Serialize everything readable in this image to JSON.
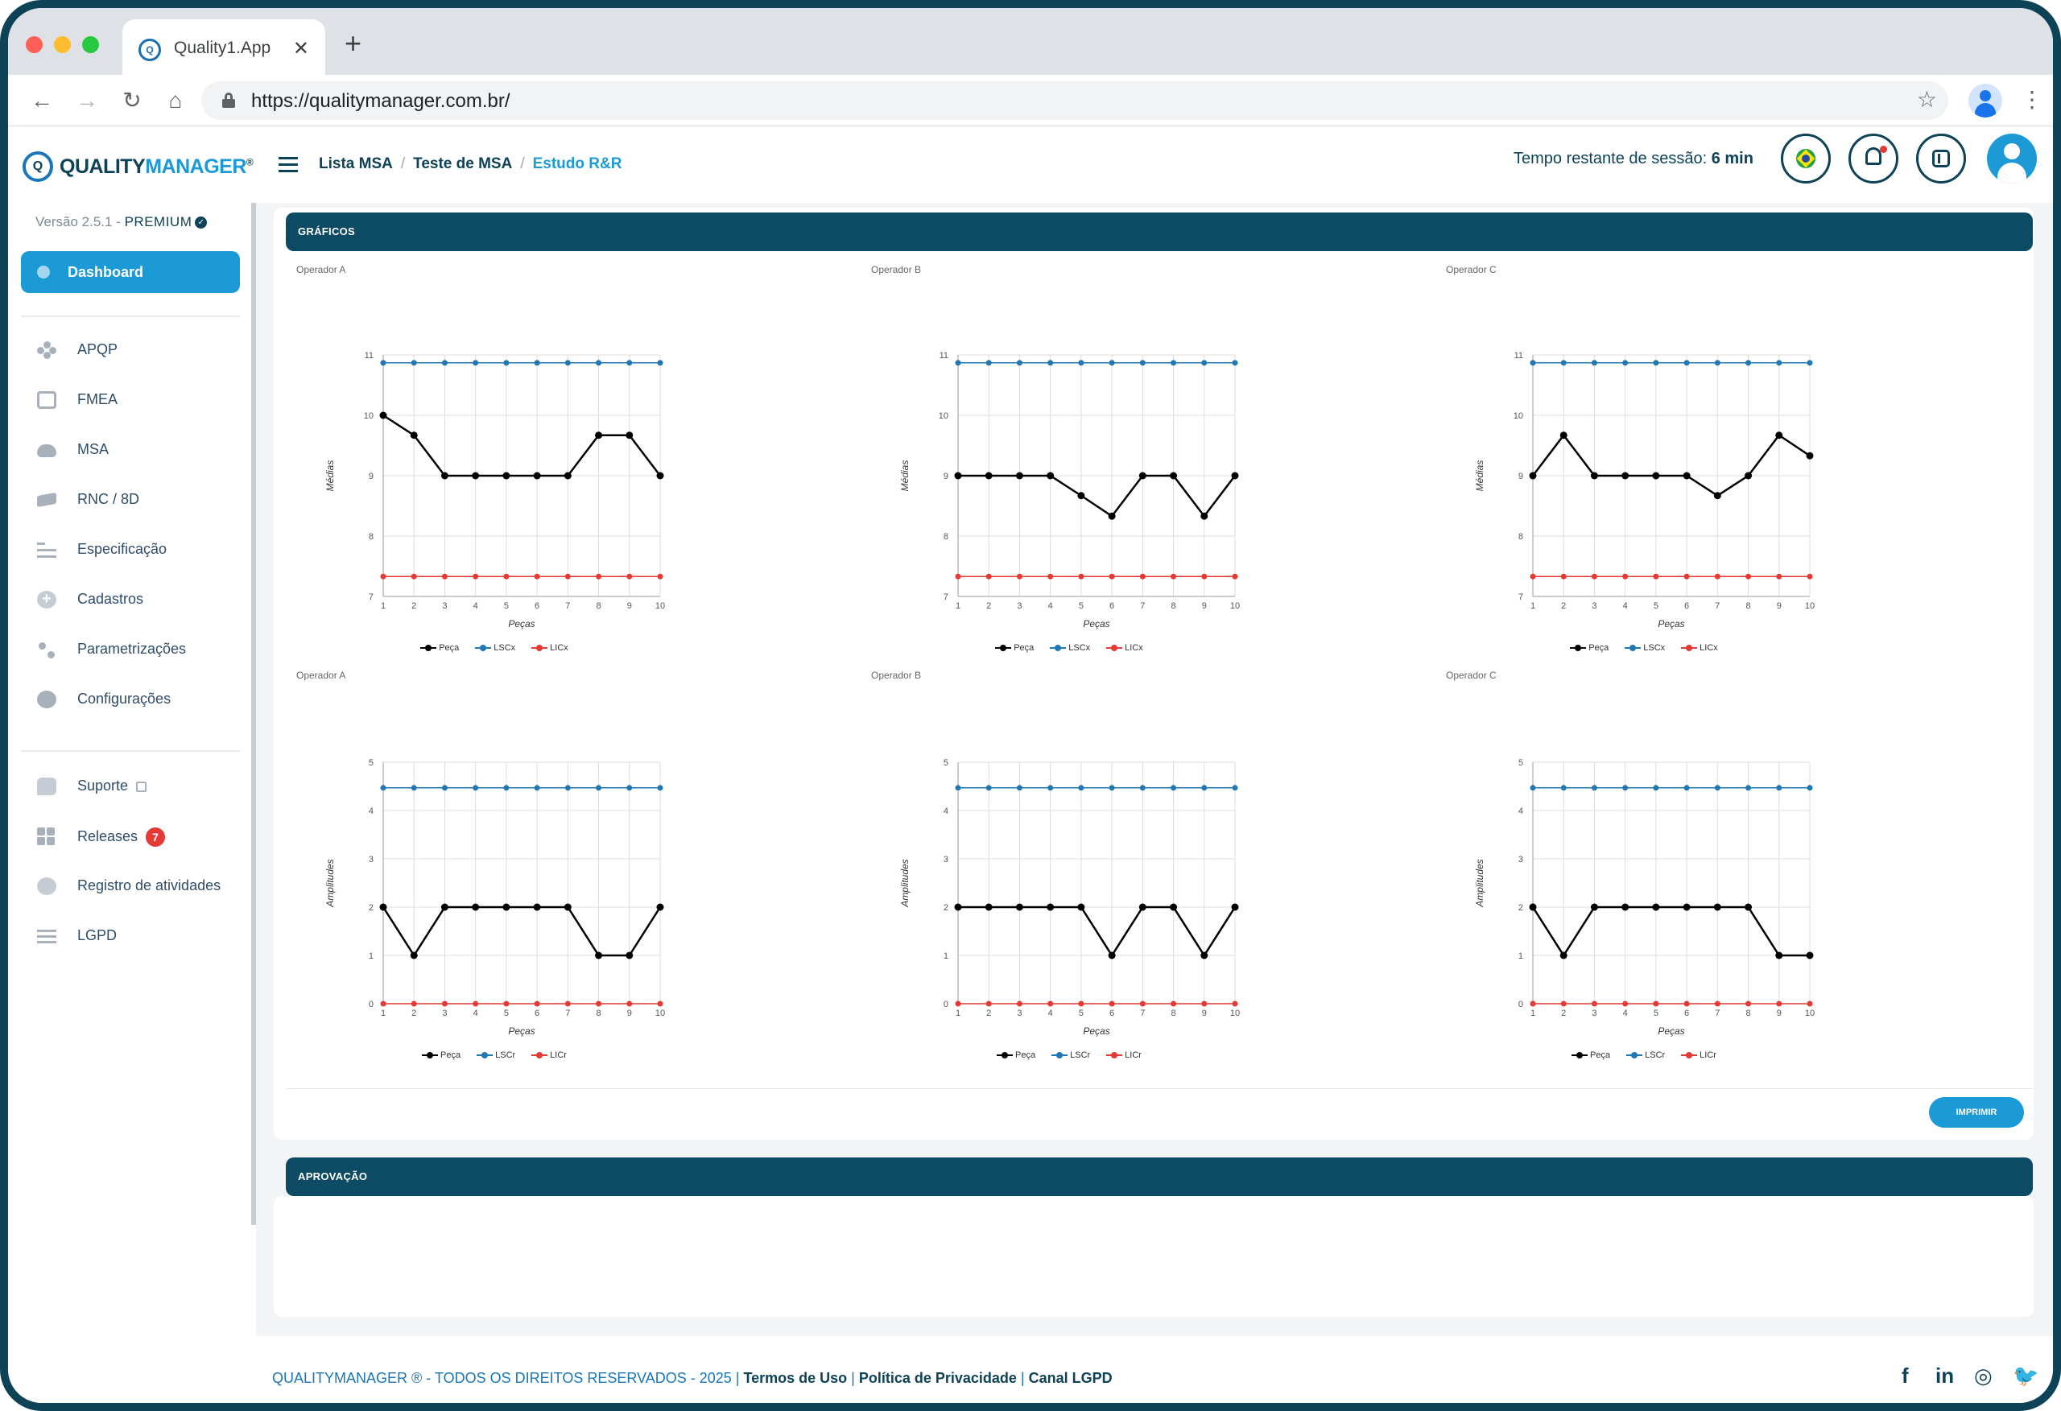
{
  "browser": {
    "tab_title": "Quality1.App",
    "url": "https://qualitymanager.com.br/"
  },
  "header": {
    "logo_quality": "QUALITY",
    "logo_manager": "MANAGER",
    "logo_reg": "®",
    "breadcrumb": [
      "Lista MSA",
      "Teste de MSA",
      "Estudo R&R"
    ],
    "session_label": "Tempo restante de sessão:",
    "session_value": "6 min"
  },
  "sidebar": {
    "version": "Versão 2.5.1 -",
    "plan": "PREMIUM",
    "dashboard": "Dashboard",
    "items": [
      {
        "label": "APQP",
        "icon": "apqp-icon"
      },
      {
        "label": "FMEA",
        "icon": "fmea-icon"
      },
      {
        "label": "MSA",
        "icon": "msa-icon"
      },
      {
        "label": "RNC / 8D",
        "icon": "rnc-icon"
      },
      {
        "label": "Especificação",
        "icon": "specification-icon"
      },
      {
        "label": "Cadastros",
        "icon": "add-icon"
      },
      {
        "label": "Parametrizações",
        "icon": "parameters-icon"
      },
      {
        "label": "Configurações",
        "icon": "gear-icon"
      }
    ],
    "support_items": [
      {
        "label": "Suporte",
        "icon": "chat-icon"
      },
      {
        "label": "Releases",
        "icon": "grid-icon",
        "badge": "7"
      },
      {
        "label": "Registro de atividades",
        "icon": "info-icon"
      },
      {
        "label": "LGPD",
        "icon": "list-icon"
      }
    ]
  },
  "sections": {
    "graphs": "GRÁFICOS",
    "approval": "APROVAÇÃO",
    "print_button": "IMPRIMIR"
  },
  "chart_data": [
    {
      "type": "line",
      "title": "Operador A",
      "xlabel": "Peças",
      "ylabel": "Médias",
      "x": [
        1,
        2,
        3,
        4,
        5,
        6,
        7,
        8,
        9,
        10
      ],
      "ylim": [
        7,
        11
      ],
      "yticks": [
        7,
        8,
        9,
        10,
        11
      ],
      "legend_position": "bottom",
      "series": [
        {
          "name": "Peça",
          "color": "#000000",
          "values": [
            10.0,
            9.67,
            9.0,
            9.0,
            9.0,
            9.0,
            9.0,
            9.67,
            9.67,
            9.0
          ]
        },
        {
          "name": "LSCx",
          "color": "#1f77b4",
          "values": [
            10.87,
            10.87,
            10.87,
            10.87,
            10.87,
            10.87,
            10.87,
            10.87,
            10.87,
            10.87
          ]
        },
        {
          "name": "LICx",
          "color": "#e53935",
          "values": [
            7.33,
            7.33,
            7.33,
            7.33,
            7.33,
            7.33,
            7.33,
            7.33,
            7.33,
            7.33
          ]
        }
      ]
    },
    {
      "type": "line",
      "title": "Operador B",
      "xlabel": "Peças",
      "ylabel": "Médias",
      "x": [
        1,
        2,
        3,
        4,
        5,
        6,
        7,
        8,
        9,
        10
      ],
      "ylim": [
        7,
        11
      ],
      "yticks": [
        7,
        8,
        9,
        10,
        11
      ],
      "legend_position": "bottom",
      "series": [
        {
          "name": "Peça",
          "color": "#000000",
          "values": [
            9.0,
            9.0,
            9.0,
            9.0,
            8.67,
            8.33,
            9.0,
            9.0,
            8.33,
            9.0
          ]
        },
        {
          "name": "LSCx",
          "color": "#1f77b4",
          "values": [
            10.87,
            10.87,
            10.87,
            10.87,
            10.87,
            10.87,
            10.87,
            10.87,
            10.87,
            10.87
          ]
        },
        {
          "name": "LICx",
          "color": "#e53935",
          "values": [
            7.33,
            7.33,
            7.33,
            7.33,
            7.33,
            7.33,
            7.33,
            7.33,
            7.33,
            7.33
          ]
        }
      ]
    },
    {
      "type": "line",
      "title": "Operador C",
      "xlabel": "Peças",
      "ylabel": "Médias",
      "x": [
        1,
        2,
        3,
        4,
        5,
        6,
        7,
        8,
        9,
        10
      ],
      "ylim": [
        7,
        11
      ],
      "yticks": [
        7,
        8,
        9,
        10,
        11
      ],
      "legend_position": "bottom",
      "series": [
        {
          "name": "Peça",
          "color": "#000000",
          "values": [
            9.0,
            9.67,
            9.0,
            9.0,
            9.0,
            9.0,
            8.67,
            9.0,
            9.67,
            9.33
          ]
        },
        {
          "name": "LSCx",
          "color": "#1f77b4",
          "values": [
            10.87,
            10.87,
            10.87,
            10.87,
            10.87,
            10.87,
            10.87,
            10.87,
            10.87,
            10.87
          ]
        },
        {
          "name": "LICx",
          "color": "#e53935",
          "values": [
            7.33,
            7.33,
            7.33,
            7.33,
            7.33,
            7.33,
            7.33,
            7.33,
            7.33,
            7.33
          ]
        }
      ]
    },
    {
      "type": "line",
      "title": "Operador A",
      "xlabel": "Peças",
      "ylabel": "Amplitudes",
      "x": [
        1,
        2,
        3,
        4,
        5,
        6,
        7,
        8,
        9,
        10
      ],
      "ylim": [
        0,
        5
      ],
      "yticks": [
        0,
        1,
        2,
        3,
        4,
        5
      ],
      "legend_position": "bottom",
      "series": [
        {
          "name": "Peça",
          "color": "#000000",
          "values": [
            2,
            1,
            2,
            2,
            2,
            2,
            2,
            1,
            1,
            2
          ]
        },
        {
          "name": "LSCr",
          "color": "#1f77b4",
          "values": [
            4.47,
            4.47,
            4.47,
            4.47,
            4.47,
            4.47,
            4.47,
            4.47,
            4.47,
            4.47
          ]
        },
        {
          "name": "LICr",
          "color": "#e53935",
          "values": [
            0,
            0,
            0,
            0,
            0,
            0,
            0,
            0,
            0,
            0
          ]
        }
      ]
    },
    {
      "type": "line",
      "title": "Operador B",
      "xlabel": "Peças",
      "ylabel": "Amplitudes",
      "x": [
        1,
        2,
        3,
        4,
        5,
        6,
        7,
        8,
        9,
        10
      ],
      "ylim": [
        0,
        5
      ],
      "yticks": [
        0,
        1,
        2,
        3,
        4,
        5
      ],
      "legend_position": "bottom",
      "series": [
        {
          "name": "Peça",
          "color": "#000000",
          "values": [
            2,
            2,
            2,
            2,
            2,
            1,
            2,
            2,
            1,
            2
          ]
        },
        {
          "name": "LSCr",
          "color": "#1f77b4",
          "values": [
            4.47,
            4.47,
            4.47,
            4.47,
            4.47,
            4.47,
            4.47,
            4.47,
            4.47,
            4.47
          ]
        },
        {
          "name": "LICr",
          "color": "#e53935",
          "values": [
            0,
            0,
            0,
            0,
            0,
            0,
            0,
            0,
            0,
            0
          ]
        }
      ]
    },
    {
      "type": "line",
      "title": "Operador C",
      "xlabel": "Peças",
      "ylabel": "Amplitudes",
      "x": [
        1,
        2,
        3,
        4,
        5,
        6,
        7,
        8,
        9,
        10
      ],
      "ylim": [
        0,
        5
      ],
      "yticks": [
        0,
        1,
        2,
        3,
        4,
        5
      ],
      "legend_position": "bottom",
      "series": [
        {
          "name": "Peça",
          "color": "#000000",
          "values": [
            2,
            1,
            2,
            2,
            2,
            2,
            2,
            2,
            1,
            1
          ]
        },
        {
          "name": "LSCr",
          "color": "#1f77b4",
          "values": [
            4.47,
            4.47,
            4.47,
            4.47,
            4.47,
            4.47,
            4.47,
            4.47,
            4.47,
            4.47
          ]
        },
        {
          "name": "LICr",
          "color": "#e53935",
          "values": [
            0,
            0,
            0,
            0,
            0,
            0,
            0,
            0,
            0,
            0
          ]
        }
      ]
    }
  ],
  "footer": {
    "copyright": "QUALITYMANAGER ® - TODOS OS DIREITOS RESERVADOS - 2025 |",
    "terms": "Termos de Uso",
    "privacy": "Política de Privacidade",
    "lgpd": "Canal LGPD",
    "social": [
      "facebook-icon",
      "linkedin-icon",
      "instagram-icon",
      "twitter-icon"
    ]
  }
}
